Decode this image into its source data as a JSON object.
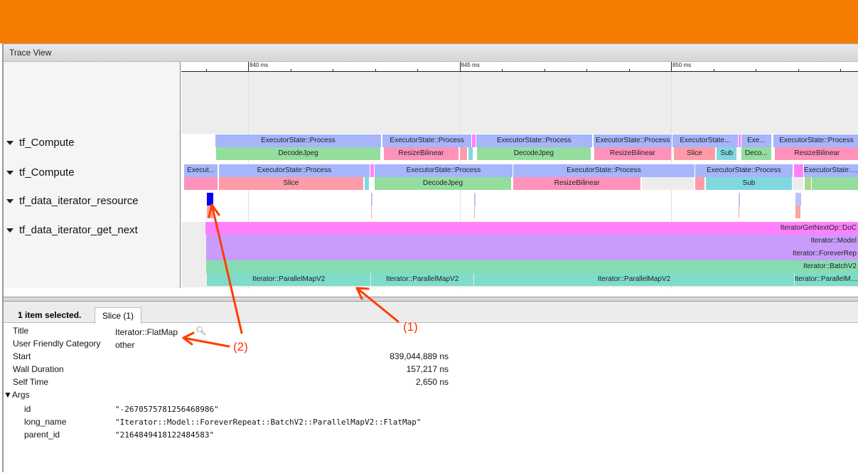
{
  "header": {
    "color": "#f57c00"
  },
  "trace_view": {
    "title": "Trace View"
  },
  "ruler": {
    "ticks": [
      {
        "ms": 840,
        "label": "840 ms"
      },
      {
        "ms": 845,
        "label": "845 ms"
      },
      {
        "ms": 850,
        "label": "850 ms"
      }
    ],
    "minor_step_ms": 1
  },
  "colors": {
    "exec": "#a7b5fb",
    "decode": "#93dd9e",
    "resize": "#fe92bb",
    "slice": "#fe9ba8",
    "sub": "#80d8df",
    "magenta": "#ff80ff",
    "model": "#c99cfc",
    "batch": "#86dcb1",
    "pmap": "#7edcc9",
    "gray": "#ececec",
    "lgreen": "#a9d98a",
    "selected": "#0000ff",
    "lblue": "#b7c4fb",
    "lpink": "#fca3a3"
  },
  "tracks": [
    {
      "label": "tf_Compute",
      "rows": [
        [
          [
            "ExecutorState::Process",
            839.23,
            843.14,
            "exec"
          ],
          [
            "ExecutorState::Process",
            843.18,
            845.28,
            "exec"
          ],
          [
            "",
            845.29,
            845.38,
            "magenta"
          ],
          [
            "ExecutorState::Process",
            845.39,
            848.13,
            "exec"
          ],
          [
            "ExecutorState::Process",
            848.17,
            850.02,
            "exec"
          ],
          [
            "ExecutorState...",
            850.03,
            851.58,
            "exec"
          ],
          [
            "",
            851.6,
            851.65,
            "magenta"
          ],
          [
            "Exe...",
            851.66,
            852.37,
            "exec"
          ],
          [
            "ExecutorState::Process",
            852.42,
            854.5,
            "exec"
          ]
        ],
        [
          [
            "DecodeJpeg",
            839.24,
            843.13,
            "decode"
          ],
          [
            "ResizeBilinear",
            843.21,
            844.97,
            "resize"
          ],
          [
            "",
            845.01,
            845.18,
            "slice"
          ],
          [
            "",
            845.21,
            845.31,
            "sub"
          ],
          [
            "DecodeJpeg",
            845.41,
            848.1,
            "decode"
          ],
          [
            "ResizeBilinear",
            848.18,
            850.0,
            "resize"
          ],
          [
            "Slice",
            850.07,
            851.04,
            "slice"
          ],
          [
            "Sub",
            851.08,
            851.55,
            "sub"
          ],
          [
            "Deco...",
            851.66,
            852.37,
            "decode"
          ],
          [
            "ResizeBilinear",
            852.45,
            854.5,
            "resize"
          ]
        ]
      ]
    },
    {
      "label": "tf_Compute",
      "rows": [
        [
          [
            "Execut...",
            838.49,
            839.28,
            "exec"
          ],
          [
            "ExecutorState::Process",
            839.31,
            842.87,
            "exec"
          ],
          [
            "",
            842.89,
            842.97,
            "magenta"
          ],
          [
            "ExecutorState::Process",
            842.99,
            846.25,
            "exec"
          ],
          [
            "ExecutorState::Process",
            846.27,
            850.55,
            "exec"
          ],
          [
            "ExecutorState::Process",
            850.57,
            852.87,
            "exec"
          ],
          [
            "",
            852.91,
            853.13,
            "magenta"
          ],
          [
            "ExecutorState::Process",
            853.14,
            854.5,
            "exec"
          ]
        ],
        [
          [
            "",
            838.49,
            839.28,
            "resize"
          ],
          [
            "Slice",
            839.31,
            842.72,
            "slice"
          ],
          [
            "",
            842.76,
            842.86,
            "sub"
          ],
          [
            "DecodeJpeg",
            842.99,
            846.22,
            "decode"
          ],
          [
            "ResizeBilinear",
            846.27,
            849.28,
            "resize"
          ],
          [
            "",
            849.31,
            850.54,
            "gray"
          ],
          [
            "",
            850.57,
            850.79,
            "slice"
          ],
          [
            "Sub",
            850.82,
            852.86,
            "sub"
          ],
          [
            "",
            852.87,
            853.13,
            "gray"
          ],
          [
            "",
            853.16,
            853.31,
            "lgreen"
          ],
          [
            "",
            853.33,
            854.5,
            "decode"
          ]
        ]
      ]
    },
    {
      "label": "tf_data_iterator_resource",
      "rows": [
        [
          [
            "",
            839.03,
            839.18,
            "selected"
          ],
          [
            "",
            842.91,
            842.94,
            "lblue"
          ],
          [
            "",
            845.34,
            845.37,
            "lblue"
          ],
          [
            "",
            851.6,
            851.63,
            "lblue"
          ],
          [
            "",
            852.94,
            853.08,
            "lblue"
          ]
        ],
        [
          [
            "",
            839.03,
            839.18,
            "lpink"
          ],
          [
            "",
            842.91,
            842.93,
            "lpink"
          ],
          [
            "",
            845.34,
            845.36,
            "lpink"
          ],
          [
            "",
            851.6,
            851.62,
            "lpink"
          ],
          [
            "",
            852.94,
            853.06,
            "lpink"
          ]
        ]
      ]
    },
    {
      "label": "tf_data_iterator_get_next",
      "rows": [
        [
          [
            "IteratorGetNextOp::DoC",
            838.99,
            854.5,
            "magenta",
            "right"
          ]
        ],
        [
          [
            "Iterator::Model",
            839.01,
            854.5,
            "model",
            "right"
          ]
        ],
        [
          [
            "Iterator::ForeverRep",
            839.01,
            854.5,
            "model",
            "right"
          ]
        ],
        [
          [
            "Iterator::BatchV2",
            839.01,
            854.5,
            "batch",
            "right"
          ]
        ],
        [
          [
            "Iterator::ParallelMapV2",
            839.03,
            842.89,
            "pmap"
          ],
          [
            "Iterator::ParallelMapV2",
            842.91,
            845.33,
            "pmap"
          ],
          [
            "Iterator::ParallelMapV2",
            845.34,
            852.91,
            "pmap"
          ],
          [
            "Iterator::ParallelMapV2",
            852.92,
            854.5,
            "pmap"
          ]
        ]
      ]
    }
  ],
  "analysis": {
    "selected_count": "1 item selected.",
    "tab": "Slice (1)",
    "fields": [
      {
        "label": "Title",
        "value": "Iterator::FlatMap"
      },
      {
        "label": "User Friendly Category",
        "value": "other"
      },
      {
        "label": "Start",
        "value": "839,044,889 ns"
      },
      {
        "label": "Wall Duration",
        "value": "157,217 ns"
      },
      {
        "label": "Self Time",
        "value": "2,650 ns"
      }
    ],
    "args_label": "Args",
    "args": [
      {
        "key": "id",
        "value": "\"-2670575781256468986\""
      },
      {
        "key": "long_name",
        "value": "\"Iterator::Model::ForeverRepeat::BatchV2::ParallelMapV2::FlatMap\""
      },
      {
        "key": "parent_id",
        "value": "\"2164849418122484583\""
      }
    ]
  },
  "annotations": [
    {
      "label": "(1)"
    },
    {
      "label": "(2)"
    }
  ]
}
